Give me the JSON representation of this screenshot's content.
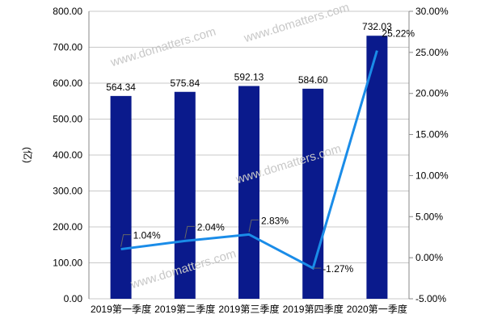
{
  "chart_data": {
    "type": "bar",
    "categories": [
      "2019第一季度",
      "2019第二季度",
      "2019第三季度",
      "2019第四季度",
      "2020第一季度"
    ],
    "series": [
      {
        "type": "bar",
        "axis": "left",
        "values": [
          564.34,
          575.84,
          592.13,
          584.6,
          732.03
        ],
        "labels": [
          "564.34",
          "575.84",
          "592.13",
          "584.60",
          "732.03"
        ],
        "color": "#0a1a8c"
      },
      {
        "type": "line",
        "axis": "right",
        "values": [
          1.04,
          2.04,
          2.83,
          -1.27,
          25.22
        ],
        "labels": [
          "1.04%",
          "2.04%",
          "2.83%",
          "-1.27%",
          "25.22%"
        ],
        "color": "#1a8ce8"
      }
    ],
    "ylabel": "(亿)",
    "ylim": [
      0,
      800
    ],
    "yticks": [
      "0.00",
      "100.00",
      "200.00",
      "300.00",
      "400.00",
      "500.00",
      "600.00",
      "700.00",
      "800.00"
    ],
    "y2lim": [
      -5,
      30
    ],
    "y2ticks": [
      "-5.00%",
      "0.00%",
      "5.00%",
      "10.00%",
      "15.00%",
      "20.00%",
      "25.00%",
      "30.00%"
    ],
    "grid": true
  },
  "watermark": "www.domatters.com"
}
